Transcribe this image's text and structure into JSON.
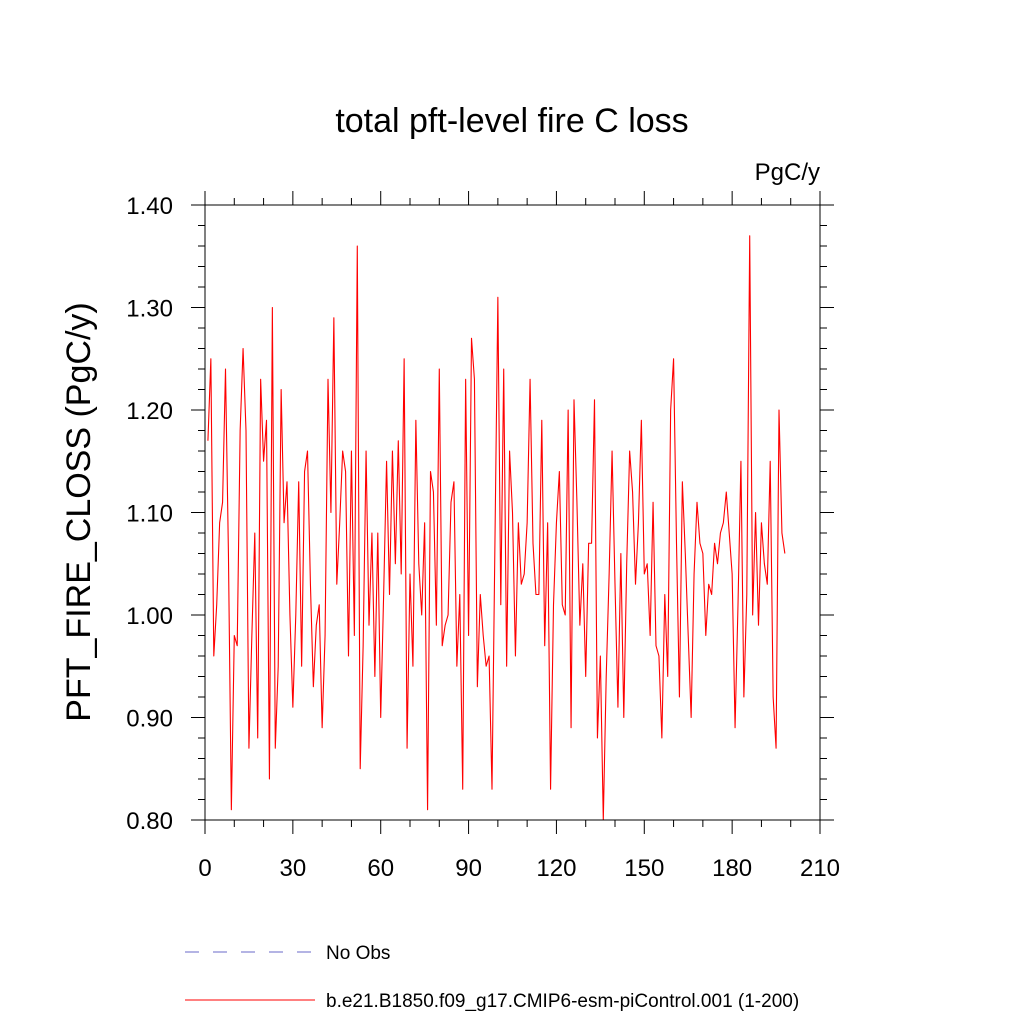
{
  "chart_data": {
    "type": "line",
    "title": "total pft-level fire C loss",
    "units": "PgC/y",
    "ylabel": "PFT_FIRE_CLOSS  (PgC/y)",
    "xlabel": "",
    "xlim": [
      0,
      210
    ],
    "ylim": [
      0.8,
      1.4
    ],
    "x_ticks": [
      0,
      30,
      60,
      90,
      120,
      150,
      180,
      210
    ],
    "x_tick_labels": [
      "0",
      "30",
      "60",
      "90",
      "120",
      "150",
      "180",
      "210"
    ],
    "y_ticks": [
      0.8,
      0.9,
      1.0,
      1.1,
      1.2,
      1.3,
      1.4
    ],
    "y_tick_labels": [
      "0.80",
      "0.90",
      "1.00",
      "1.10",
      "1.20",
      "1.30",
      "1.40"
    ],
    "grid": false,
    "legend": {
      "placement": "bottom-left",
      "entries": [
        {
          "label": "No Obs",
          "color": "#6a6ac8",
          "style": "dashed"
        },
        {
          "label": "b.e21.B1850.f09_g17.CMIP6-esm-piControl.001 (1-200)",
          "color": "#ff0000",
          "style": "solid"
        }
      ]
    },
    "series": [
      {
        "name": "b.e21.B1850.f09_g17.CMIP6-esm-piControl.001 (1-200)",
        "color": "#ff0000",
        "x_start": 1,
        "values": [
          1.17,
          1.25,
          0.96,
          1.01,
          1.09,
          1.11,
          1.24,
          1.06,
          0.81,
          0.98,
          0.97,
          1.18,
          1.26,
          1.18,
          0.87,
          0.98,
          1.08,
          0.88,
          1.23,
          1.15,
          1.19,
          0.84,
          1.3,
          0.87,
          0.95,
          1.22,
          1.09,
          1.13,
          1.0,
          0.91,
          1.0,
          1.13,
          0.95,
          1.14,
          1.16,
          1.03,
          0.93,
          0.99,
          1.01,
          0.89,
          0.98,
          1.23,
          1.1,
          1.29,
          1.03,
          1.09,
          1.16,
          1.14,
          0.96,
          1.16,
          0.98,
          1.36,
          0.85,
          0.97,
          1.16,
          0.99,
          1.08,
          0.94,
          1.08,
          0.9,
          1.02,
          1.15,
          1.02,
          1.16,
          1.05,
          1.17,
          1.04,
          1.25,
          0.87,
          1.04,
          0.95,
          1.19,
          1.05,
          1.0,
          1.09,
          0.81,
          1.14,
          1.12,
          0.99,
          1.24,
          0.97,
          0.99,
          1.0,
          1.11,
          1.13,
          0.95,
          1.02,
          0.83,
          1.23,
          0.98,
          1.27,
          1.23,
          0.93,
          1.02,
          0.98,
          0.95,
          0.96,
          0.83,
          1.07,
          1.31,
          1.01,
          1.24,
          0.95,
          1.16,
          1.1,
          0.96,
          1.09,
          1.03,
          1.04,
          1.09,
          1.23,
          1.07,
          1.02,
          1.02,
          1.19,
          0.97,
          1.09,
          0.83,
          1.01,
          1.09,
          1.14,
          1.01,
          1.0,
          1.2,
          0.89,
          1.21,
          1.11,
          0.99,
          1.05,
          0.94,
          1.07,
          1.07,
          1.21,
          0.88,
          0.96,
          0.8,
          0.94,
          1.04,
          1.16,
          1.03,
          0.91,
          1.06,
          0.9,
          1.05,
          1.16,
          1.12,
          1.03,
          1.09,
          1.19,
          1.04,
          1.05,
          0.98,
          1.11,
          0.97,
          0.96,
          0.88,
          1.02,
          0.94,
          1.2,
          1.25,
          1.07,
          0.92,
          1.13,
          1.06,
          0.98,
          0.9,
          1.04,
          1.11,
          1.07,
          1.06,
          0.98,
          1.03,
          1.02,
          1.07,
          1.05,
          1.08,
          1.09,
          1.12,
          1.08,
          1.04,
          0.89,
          1.01,
          1.15,
          0.92,
          1.02,
          1.37,
          1.0,
          1.1,
          0.99,
          1.09,
          1.05,
          1.03,
          1.15,
          0.92,
          0.87,
          1.2,
          1.08,
          1.06
        ]
      }
    ]
  }
}
